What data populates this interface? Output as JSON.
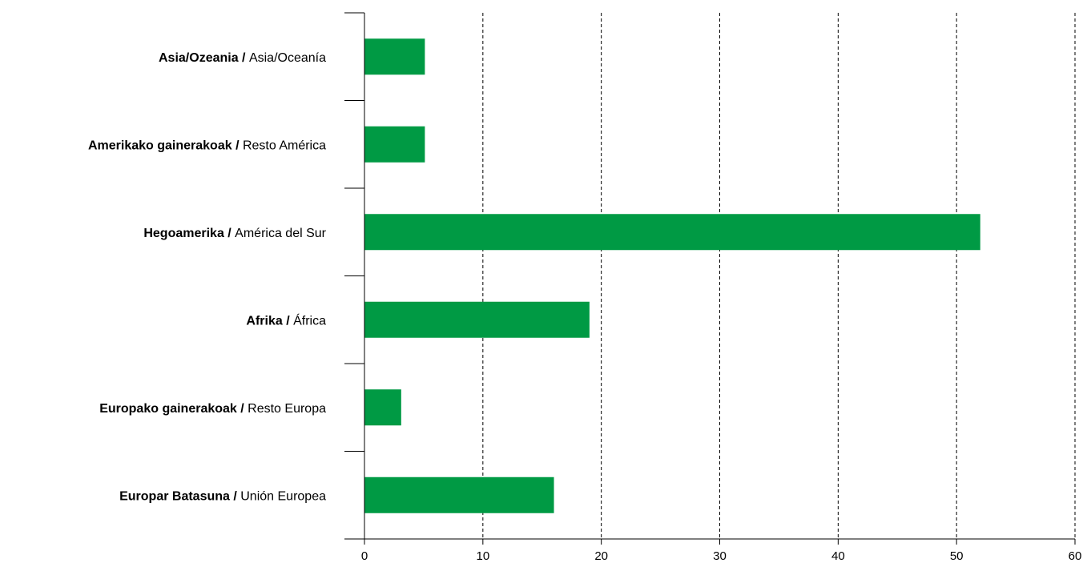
{
  "chart_data": {
    "type": "bar",
    "orientation": "horizontal",
    "categories": [
      {
        "bold": "Asia/Ozeania /",
        "regular": "Asia/Oceanía"
      },
      {
        "bold": "Amerikako gainerakoak /",
        "regular": "Resto América"
      },
      {
        "bold": "Hegoamerika /",
        "regular": "América del Sur"
      },
      {
        "bold": "Afrika /",
        "regular": "África"
      },
      {
        "bold": "Europako gainerakoak /",
        "regular": "Resto Europa"
      },
      {
        "bold": "Europar Batasuna /",
        "regular": "Unión Europea"
      }
    ],
    "values": [
      5.1,
      5.1,
      52,
      19,
      3.1,
      16
    ],
    "xlim": [
      0,
      60
    ],
    "xticks": [
      "0",
      "10",
      "20",
      "30",
      "40",
      "50",
      "60"
    ],
    "bar_color": "#009a44",
    "grid": "vertical dashed",
    "title": "",
    "xlabel": "",
    "ylabel": ""
  }
}
